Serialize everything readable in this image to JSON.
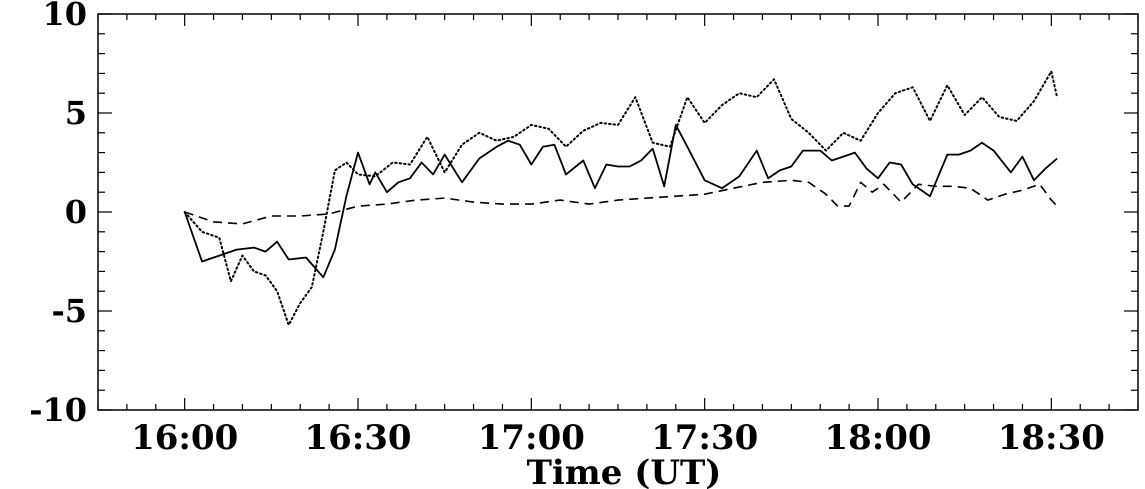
{
  "chart_data": {
    "type": "line",
    "title": "",
    "xlabel": "Time (UT)",
    "ylabel": "",
    "x_ticks": [
      "16:00",
      "16:30",
      "17:00",
      "17:30",
      "18:00",
      "18:30"
    ],
    "y_ticks": [
      "10",
      "5",
      "0",
      "-5",
      "-10"
    ],
    "xlim": [
      "15:45",
      "18:45"
    ],
    "ylim": [
      -10,
      10
    ],
    "grid": false,
    "legend": "none",
    "series": [
      {
        "style": "solid",
        "x": [
          "16:00",
          "16:03",
          "16:06",
          "16:09",
          "16:12",
          "16:14",
          "16:16",
          "16:18",
          "16:21",
          "16:24",
          "16:26",
          "16:28",
          "16:30",
          "16:32",
          "16:33",
          "16:35",
          "16:37",
          "16:39",
          "16:41",
          "16:43",
          "16:45",
          "16:48",
          "16:51",
          "16:54",
          "16:56",
          "16:58",
          "17:00",
          "17:02",
          "17:04",
          "17:06",
          "17:09",
          "17:11",
          "17:13",
          "17:15",
          "17:17",
          "17:19",
          "17:21",
          "17:23",
          "17:25",
          "17:27",
          "17:30",
          "17:33",
          "17:36",
          "17:39",
          "17:41",
          "17:43",
          "17:45",
          "17:47",
          "17:50",
          "17:52",
          "17:54",
          "17:56",
          "17:58",
          "18:00",
          "18:02",
          "18:04",
          "18:06",
          "18:09",
          "18:12",
          "18:14",
          "18:16",
          "18:18",
          "18:20",
          "18:23",
          "18:25",
          "18:27",
          "18:29",
          "18:31"
        ],
        "values": [
          0.0,
          -2.5,
          -2.2,
          -1.9,
          -1.8,
          -2.0,
          -1.5,
          -2.4,
          -2.3,
          -3.3,
          -1.9,
          0.8,
          3.0,
          1.4,
          2.0,
          1.0,
          1.5,
          1.7,
          2.5,
          1.9,
          2.9,
          1.5,
          2.7,
          3.3,
          3.6,
          3.4,
          2.4,
          3.3,
          3.4,
          1.9,
          2.6,
          1.2,
          2.4,
          2.3,
          2.3,
          2.6,
          3.2,
          1.3,
          4.4,
          3.3,
          1.6,
          1.2,
          1.8,
          3.1,
          1.7,
          2.1,
          2.3,
          3.1,
          3.1,
          2.6,
          2.8,
          3.0,
          2.2,
          1.7,
          2.5,
          2.4,
          1.4,
          0.8,
          2.9,
          2.9,
          3.1,
          3.5,
          3.1,
          2.0,
          2.8,
          1.6,
          2.2,
          2.7
        ]
      },
      {
        "style": "dotted",
        "x": [
          "16:00",
          "16:03",
          "16:06",
          "16:08",
          "16:10",
          "16:12",
          "16:14",
          "16:16",
          "16:18",
          "16:20",
          "16:22",
          "16:24",
          "16:26",
          "16:28",
          "16:30",
          "16:33",
          "16:36",
          "16:39",
          "16:42",
          "16:45",
          "16:48",
          "16:51",
          "16:54",
          "16:57",
          "17:00",
          "17:03",
          "17:06",
          "17:09",
          "17:12",
          "17:15",
          "17:18",
          "17:21",
          "17:24",
          "17:27",
          "17:30",
          "17:33",
          "17:36",
          "17:39",
          "17:42",
          "17:45",
          "17:48",
          "17:51",
          "17:54",
          "17:57",
          "18:00",
          "18:03",
          "18:06",
          "18:09",
          "18:12",
          "18:15",
          "18:18",
          "18:21",
          "18:24",
          "18:27",
          "18:30",
          "18:31"
        ],
        "values": [
          0.0,
          -1.0,
          -1.3,
          -3.5,
          -2.2,
          -3.0,
          -3.2,
          -4.0,
          -5.7,
          -4.6,
          -3.8,
          -1.0,
          2.1,
          2.5,
          1.9,
          1.8,
          2.5,
          2.4,
          3.8,
          2.0,
          3.4,
          4.0,
          3.6,
          3.8,
          4.4,
          4.2,
          3.3,
          4.1,
          4.5,
          4.4,
          5.8,
          3.5,
          3.3,
          5.8,
          4.5,
          5.4,
          6.0,
          5.8,
          6.7,
          4.7,
          4.0,
          3.1,
          4.0,
          3.6,
          5.0,
          6.0,
          6.3,
          4.6,
          6.4,
          4.9,
          5.8,
          4.8,
          4.6,
          5.6,
          7.1,
          5.8
        ]
      },
      {
        "style": "dashed",
        "x": [
          "16:00",
          "16:05",
          "16:10",
          "16:15",
          "16:20",
          "16:25",
          "16:30",
          "16:35",
          "16:40",
          "16:45",
          "16:50",
          "16:55",
          "17:00",
          "17:05",
          "17:10",
          "17:15",
          "17:20",
          "17:25",
          "17:30",
          "17:35",
          "17:40",
          "17:45",
          "17:48",
          "17:51",
          "17:53",
          "17:55",
          "17:57",
          "17:59",
          "18:01",
          "18:04",
          "18:07",
          "18:10",
          "18:13",
          "18:16",
          "18:19",
          "18:22",
          "18:25",
          "18:28",
          "18:30",
          "18:31"
        ],
        "values": [
          0.0,
          -0.5,
          -0.6,
          -0.2,
          -0.2,
          -0.1,
          0.3,
          0.4,
          0.6,
          0.7,
          0.5,
          0.4,
          0.4,
          0.6,
          0.4,
          0.6,
          0.7,
          0.8,
          0.9,
          1.2,
          1.5,
          1.6,
          1.5,
          0.9,
          0.3,
          0.3,
          1.5,
          1.0,
          1.4,
          0.5,
          1.4,
          1.3,
          1.3,
          1.2,
          0.6,
          0.9,
          1.1,
          1.4,
          0.6,
          0.3
        ]
      }
    ]
  }
}
